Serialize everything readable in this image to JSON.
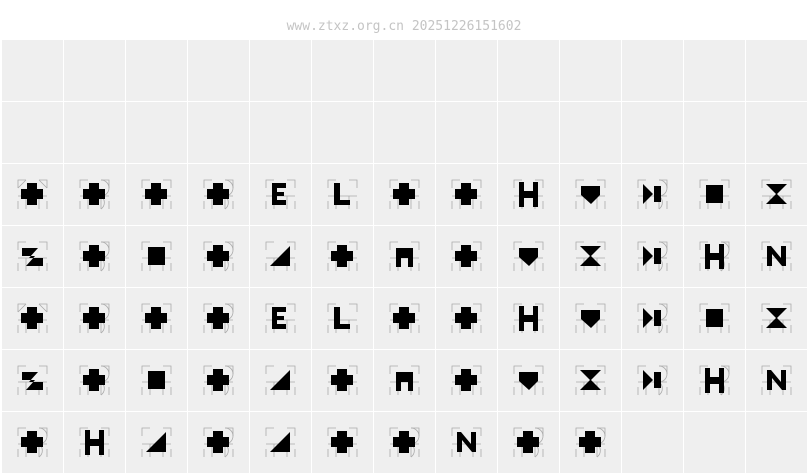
{
  "header": {
    "watermark": "www.ztxz.org.cn 20251226151602"
  },
  "grid": {
    "columns": 13,
    "rows": 7,
    "empty_rows": 2,
    "glyphs": [
      [
        "cross-arrow-up",
        "cross-b",
        "cross-c",
        "cross-b",
        "E",
        "L",
        "cross",
        "cross-wide",
        "H",
        "square-down",
        "bowtie",
        "square",
        "hourglass"
      ],
      [
        "Z",
        "cross-round",
        "square",
        "cross-round",
        "triangle",
        "cross",
        "arch",
        "cross",
        "arrow-down",
        "hourglass",
        "bowtie",
        "H-bowtie",
        "N"
      ],
      [
        "cross-arrow-up",
        "cross-b",
        "cross-c",
        "cross-b",
        "E",
        "L",
        "cross",
        "cross-wide",
        "H",
        "square-down",
        "bowtie",
        "square",
        "hourglass"
      ],
      [
        "Z",
        "cross-round",
        "square",
        "cross-round",
        "triangle",
        "cross",
        "arch",
        "cross",
        "arrow-down",
        "hourglass",
        "bowtie",
        "H-bowtie",
        "N"
      ],
      [
        "cross-round",
        "H",
        "triangle",
        "cross-b",
        "triangle",
        "cross",
        "cross-round",
        "N",
        "cross-round",
        "cross-round"
      ]
    ]
  }
}
